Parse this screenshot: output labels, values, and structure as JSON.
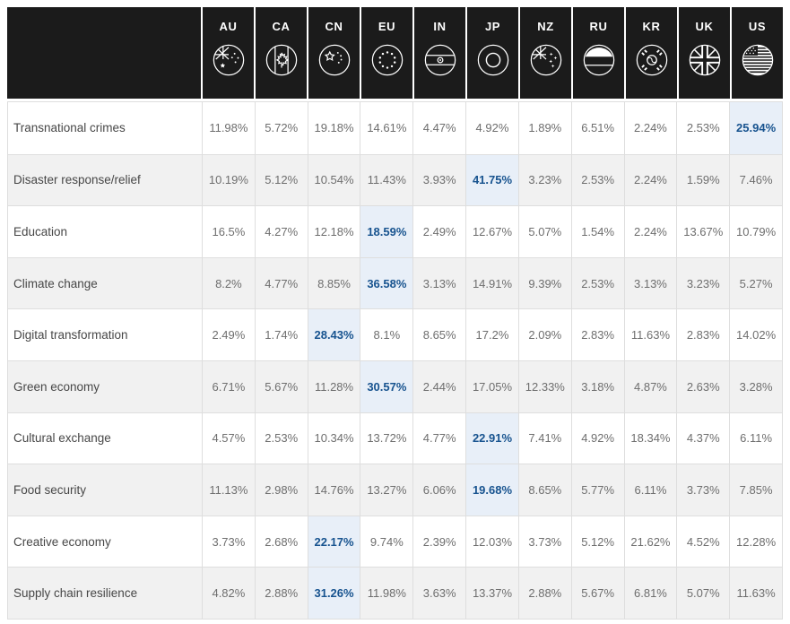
{
  "colors": {
    "header_bg": "#1b1b1b",
    "row_stripe": "#f1f1f1",
    "grid_line": "#dedede",
    "highlight_bg": "#e8eff8",
    "highlight_text": "#17538f",
    "label_text": "#474747",
    "value_text": "#6e6e6e"
  },
  "table": {
    "columns": [
      {
        "code": "AU",
        "icon": "flag-au"
      },
      {
        "code": "CA",
        "icon": "flag-ca"
      },
      {
        "code": "CN",
        "icon": "flag-cn"
      },
      {
        "code": "EU",
        "icon": "flag-eu"
      },
      {
        "code": "IN",
        "icon": "flag-in"
      },
      {
        "code": "JP",
        "icon": "flag-jp"
      },
      {
        "code": "NZ",
        "icon": "flag-nz"
      },
      {
        "code": "RU",
        "icon": "flag-ru"
      },
      {
        "code": "KR",
        "icon": "flag-kr"
      },
      {
        "code": "UK",
        "icon": "flag-uk"
      },
      {
        "code": "US",
        "icon": "flag-us"
      }
    ],
    "rows": [
      {
        "label": "Transnational crimes",
        "values": [
          "11.98%",
          "5.72%",
          "19.18%",
          "14.61%",
          "4.47%",
          "4.92%",
          "1.89%",
          "6.51%",
          "2.24%",
          "2.53%",
          "25.94%"
        ],
        "highlight": 10
      },
      {
        "label": "Disaster response/relief",
        "values": [
          "10.19%",
          "5.12%",
          "10.54%",
          "11.43%",
          "3.93%",
          "41.75%",
          "3.23%",
          "2.53%",
          "2.24%",
          "1.59%",
          "7.46%"
        ],
        "highlight": 5
      },
      {
        "label": "Education",
        "values": [
          "16.5%",
          "4.27%",
          "12.18%",
          "18.59%",
          "2.49%",
          "12.67%",
          "5.07%",
          "1.54%",
          "2.24%",
          "13.67%",
          "10.79%"
        ],
        "highlight": 3
      },
      {
        "label": "Climate change",
        "values": [
          "8.2%",
          "4.77%",
          "8.85%",
          "36.58%",
          "3.13%",
          "14.91%",
          "9.39%",
          "2.53%",
          "3.13%",
          "3.23%",
          "5.27%"
        ],
        "highlight": 3
      },
      {
        "label": "Digital transformation",
        "values": [
          "2.49%",
          "1.74%",
          "28.43%",
          "8.1%",
          "8.65%",
          "17.2%",
          "2.09%",
          "2.83%",
          "11.63%",
          "2.83%",
          "14.02%"
        ],
        "highlight": 2
      },
      {
        "label": "Green economy",
        "values": [
          "6.71%",
          "5.67%",
          "11.28%",
          "30.57%",
          "2.44%",
          "17.05%",
          "12.33%",
          "3.18%",
          "4.87%",
          "2.63%",
          "3.28%"
        ],
        "highlight": 3
      },
      {
        "label": "Cultural exchange",
        "values": [
          "4.57%",
          "2.53%",
          "10.34%",
          "13.72%",
          "4.77%",
          "22.91%",
          "7.41%",
          "4.92%",
          "18.34%",
          "4.37%",
          "6.11%"
        ],
        "highlight": 5
      },
      {
        "label": "Food security",
        "values": [
          "11.13%",
          "2.98%",
          "14.76%",
          "13.27%",
          "6.06%",
          "19.68%",
          "8.65%",
          "5.77%",
          "6.11%",
          "3.73%",
          "7.85%"
        ],
        "highlight": 5
      },
      {
        "label": "Creative economy",
        "values": [
          "3.73%",
          "2.68%",
          "22.17%",
          "9.74%",
          "2.39%",
          "12.03%",
          "3.73%",
          "5.12%",
          "21.62%",
          "4.52%",
          "12.28%"
        ],
        "highlight": 2
      },
      {
        "label": "Supply chain resilience",
        "values": [
          "4.82%",
          "2.88%",
          "31.26%",
          "11.98%",
          "3.63%",
          "13.37%",
          "2.88%",
          "5.67%",
          "6.81%",
          "5.07%",
          "11.63%"
        ],
        "highlight": 2
      }
    ]
  }
}
